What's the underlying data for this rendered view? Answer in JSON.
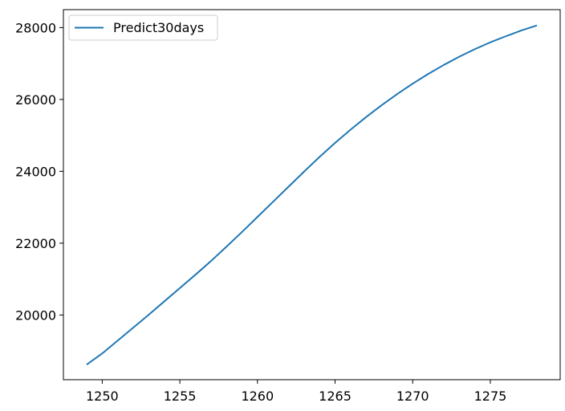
{
  "chart_data": {
    "type": "line",
    "title": "",
    "xlabel": "",
    "ylabel": "",
    "xlim": [
      1247.5,
      1279.5
    ],
    "ylim": [
      18200,
      28500
    ],
    "xticks": [
      1250,
      1255,
      1260,
      1265,
      1270,
      1275
    ],
    "xtick_labels": [
      "1250",
      "1255",
      "1260",
      "1265",
      "1270",
      "1275"
    ],
    "yticks": [
      20000,
      22000,
      24000,
      26000,
      28000
    ],
    "ytick_labels": [
      "20000",
      "22000",
      "24000",
      "26000",
      "28000"
    ],
    "grid": false,
    "legend": {
      "position": "upper-left",
      "entries": [
        "Predict30days"
      ]
    },
    "series": [
      {
        "name": "Predict30days",
        "color": "#1f77b4",
        "x": [
          1249,
          1250,
          1251,
          1252,
          1253,
          1254,
          1255,
          1256,
          1257,
          1258,
          1259,
          1260,
          1261,
          1262,
          1263,
          1264,
          1265,
          1266,
          1267,
          1268,
          1269,
          1270,
          1271,
          1272,
          1273,
          1274,
          1275,
          1276,
          1277,
          1278
        ],
        "y": [
          18620,
          18930,
          19290,
          19650,
          20010,
          20380,
          20750,
          21120,
          21500,
          21900,
          22310,
          22730,
          23150,
          23570,
          23990,
          24400,
          24790,
          25160,
          25510,
          25840,
          26150,
          26440,
          26710,
          26960,
          27190,
          27400,
          27590,
          27760,
          27920,
          28060
        ]
      }
    ]
  }
}
